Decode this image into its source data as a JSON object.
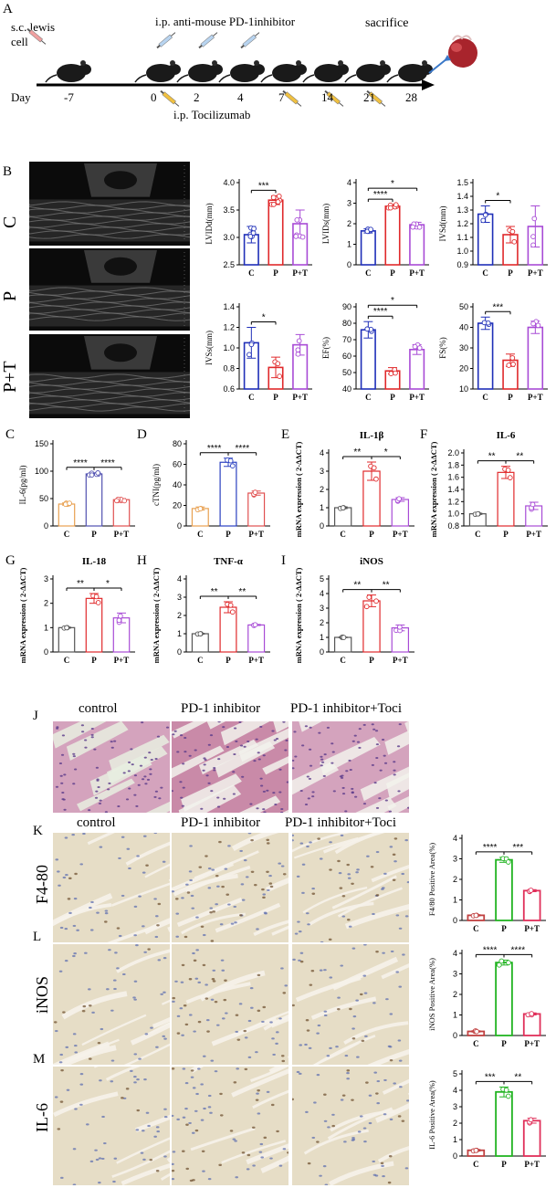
{
  "panel_letters": [
    "A",
    "B",
    "C",
    "D",
    "E",
    "F",
    "G",
    "H",
    "I",
    "J",
    "K",
    "L",
    "M"
  ],
  "timeline": {
    "top_left": "s.c. lewis",
    "top_left2": "cell",
    "top_mid": "i.p. anti-mouse PD-1inhibitor",
    "top_right": "sacrifice",
    "day_label": "Day",
    "days": [
      "-7",
      "0",
      "2",
      "4",
      "7",
      "14",
      "21",
      "28"
    ],
    "bottom": "i.p. Tocilizumab"
  },
  "echo_rows": [
    "C",
    "P",
    "P+T"
  ],
  "histology": {
    "j_cols": [
      "control",
      "PD-1 inhibitor",
      "PD-1 inhibitor+Toci"
    ],
    "k_cols": [
      "control",
      "PD-1 inhibitor",
      "PD-1 inhibitor+Toci"
    ],
    "rows": [
      "F4-80",
      "iNOS",
      "IL-6"
    ]
  },
  "colors": {
    "C": "#1f2fb8",
    "P": "#e0292b",
    "PT": "#a84bd6",
    "C_cd": "#e8a050",
    "K_C": "#c04040",
    "K_P": "#22b422",
    "K_PT": "#e0305a"
  },
  "chart_data": [
    {
      "id": "lvidd",
      "type": "bar",
      "categories": [
        "C",
        "P",
        "P+T"
      ],
      "values": [
        3.05,
        3.68,
        3.25
      ],
      "errors": [
        0.15,
        0.08,
        0.25
      ],
      "ylabel": "LVIDd(mm)",
      "ylim": [
        2.5,
        4.0
      ],
      "yticks": [
        "2.5",
        "3.0",
        "3.5",
        "4.0"
      ],
      "sig": [
        {
          "a": 0,
          "b": 1,
          "t": "***"
        }
      ]
    },
    {
      "id": "lvids",
      "type": "bar",
      "categories": [
        "C",
        "P",
        "P+T"
      ],
      "values": [
        1.65,
        2.85,
        1.95
      ],
      "errors": [
        0.1,
        0.08,
        0.12
      ],
      "ylabel": "LVIDs(mm)",
      "ylim": [
        0,
        4
      ],
      "yticks": [
        "0",
        "1",
        "2",
        "3",
        "4"
      ],
      "sig": [
        {
          "a": 0,
          "b": 1,
          "t": "****"
        },
        {
          "a": 0,
          "b": 2,
          "t": "*"
        }
      ]
    },
    {
      "id": "ivsd",
      "type": "bar",
      "categories": [
        "C",
        "P",
        "P+T"
      ],
      "values": [
        1.27,
        1.12,
        1.18
      ],
      "errors": [
        0.06,
        0.06,
        0.15
      ],
      "ylabel": "IVSd(mm)",
      "ylim": [
        0.9,
        1.5
      ],
      "yticks": [
        "0.9",
        "1.0",
        "1.1",
        "1.2",
        "1.3",
        "1.4",
        "1.5"
      ],
      "sig": [
        {
          "a": 0,
          "b": 1,
          "t": "*"
        }
      ]
    },
    {
      "id": "ivss",
      "type": "bar",
      "categories": [
        "C",
        "P",
        "P+T"
      ],
      "values": [
        1.05,
        0.81,
        1.03
      ],
      "errors": [
        0.15,
        0.1,
        0.1
      ],
      "ylabel": "IVSs(mm)",
      "ylim": [
        0.6,
        1.4
      ],
      "yticks": [
        "0.6",
        "0.8",
        "1.0",
        "1.2",
        "1.4"
      ],
      "sig": [
        {
          "a": 0,
          "b": 1,
          "t": "*"
        }
      ]
    },
    {
      "id": "ef",
      "type": "bar",
      "categories": [
        "C",
        "P",
        "P+T"
      ],
      "values": [
        76,
        51,
        64
      ],
      "errors": [
        5,
        2,
        3
      ],
      "ylabel": "EF(%)",
      "ylim": [
        40,
        90
      ],
      "yticks": [
        "40",
        "50",
        "60",
        "70",
        "80",
        "90"
      ],
      "sig": [
        {
          "a": 0,
          "b": 1,
          "t": "****"
        },
        {
          "a": 0,
          "b": 2,
          "t": "*"
        }
      ]
    },
    {
      "id": "fs",
      "type": "bar",
      "categories": [
        "C",
        "P",
        "P+T"
      ],
      "values": [
        42,
        24,
        40
      ],
      "errors": [
        3,
        3,
        3
      ],
      "ylabel": "FS(%)",
      "ylim": [
        10,
        50
      ],
      "yticks": [
        "10",
        "20",
        "30",
        "40",
        "50"
      ],
      "sig": [
        {
          "a": 0,
          "b": 1,
          "t": "***"
        }
      ]
    },
    {
      "id": "il6pg",
      "type": "bar",
      "categories": [
        "C",
        "P",
        "P+T"
      ],
      "values": [
        40,
        95,
        48
      ],
      "errors": [
        2,
        2,
        2
      ],
      "ylabel": "IL-6(pg/ml)",
      "ylim": [
        0,
        150
      ],
      "yticks": [
        "0",
        "50",
        "100",
        "150"
      ],
      "sig": [
        {
          "a": 0,
          "b": 1,
          "t": "****"
        },
        {
          "a": 1,
          "b": 2,
          "t": "****"
        }
      ]
    },
    {
      "id": "ctni",
      "type": "bar",
      "categories": [
        "C",
        "P",
        "P+T"
      ],
      "values": [
        17,
        62,
        32
      ],
      "errors": [
        1.5,
        4,
        2
      ],
      "ylabel": "cTNI(pg/ml)",
      "ylim": [
        0,
        80
      ],
      "yticks": [
        "0",
        "20",
        "40",
        "60",
        "80"
      ],
      "sig": [
        {
          "a": 0,
          "b": 1,
          "t": "****"
        },
        {
          "a": 1,
          "b": 2,
          "t": "****"
        }
      ]
    },
    {
      "id": "il1b",
      "type": "bar",
      "title": "IL-1β",
      "categories": [
        "C",
        "P",
        "P+T"
      ],
      "values": [
        1,
        3.0,
        1.45
      ],
      "errors": [
        0.05,
        0.5,
        0.1
      ],
      "ylabel": "mRNA expression ( 2-ΔΔCT)",
      "ylim": [
        0,
        4
      ],
      "yticks": [
        "0",
        "1",
        "2",
        "3",
        "4"
      ],
      "sig": [
        {
          "a": 0,
          "b": 1,
          "t": "**"
        },
        {
          "a": 1,
          "b": 2,
          "t": "*"
        }
      ]
    },
    {
      "id": "il6m",
      "type": "bar",
      "title": "IL-6",
      "categories": [
        "C",
        "P",
        "P+T"
      ],
      "values": [
        1.0,
        1.68,
        1.13
      ],
      "errors": [
        0.01,
        0.1,
        0.06
      ],
      "ylabel": "mRNA expression ( 2-ΔΔCT)",
      "ylim": [
        0.8,
        2.0
      ],
      "yticks": [
        "0.8",
        "1.0",
        "1.2",
        "1.4",
        "1.6",
        "1.8",
        "2.0"
      ],
      "sig": [
        {
          "a": 0,
          "b": 1,
          "t": "**"
        },
        {
          "a": 1,
          "b": 2,
          "t": "**"
        }
      ]
    },
    {
      "id": "il18",
      "type": "bar",
      "title": "IL-18",
      "categories": [
        "C",
        "P",
        "P+T"
      ],
      "values": [
        1,
        2.2,
        1.4
      ],
      "errors": [
        0.02,
        0.2,
        0.2
      ],
      "ylabel": "mRNA expression ( 2-ΔΔCT)",
      "ylim": [
        0,
        3
      ],
      "yticks": [
        "0",
        "1",
        "2",
        "3"
      ],
      "sig": [
        {
          "a": 0,
          "b": 1,
          "t": "**"
        },
        {
          "a": 1,
          "b": 2,
          "t": "*"
        }
      ]
    },
    {
      "id": "tnfa",
      "type": "bar",
      "title": "TNF-α",
      "categories": [
        "C",
        "P",
        "P+T"
      ],
      "values": [
        1,
        2.45,
        1.48
      ],
      "errors": [
        0.02,
        0.3,
        0.03
      ],
      "ylabel": "mRNA expression ( 2-ΔΔCT)",
      "ylim": [
        0,
        4
      ],
      "yticks": [
        "0",
        "1",
        "2",
        "3",
        "4"
      ],
      "sig": [
        {
          "a": 0,
          "b": 1,
          "t": "**"
        },
        {
          "a": 1,
          "b": 2,
          "t": "**"
        }
      ]
    },
    {
      "id": "inosm",
      "type": "bar",
      "title": "iNOS",
      "categories": [
        "C",
        "P",
        "P+T"
      ],
      "values": [
        1,
        3.5,
        1.65
      ],
      "errors": [
        0.02,
        0.4,
        0.2
      ],
      "ylabel": "mRNA expression ( 2-ΔΔCT)",
      "ylim": [
        0,
        5
      ],
      "yticks": [
        "0",
        "1",
        "2",
        "3",
        "4",
        "5"
      ],
      "sig": [
        {
          "a": 0,
          "b": 1,
          "t": "**"
        },
        {
          "a": 1,
          "b": 2,
          "t": "**"
        }
      ]
    },
    {
      "id": "f480",
      "type": "bar",
      "categories": [
        "C",
        "P",
        "P+T"
      ],
      "values": [
        0.25,
        2.95,
        1.45
      ],
      "errors": [
        0.03,
        0.12,
        0.05
      ],
      "ylabel": "F4/80 Positive Area(%)",
      "ylim": [
        0,
        4
      ],
      "yticks": [
        "0",
        "1",
        "2",
        "3",
        "4"
      ],
      "sig": [
        {
          "a": 0,
          "b": 1,
          "t": "****"
        },
        {
          "a": 1,
          "b": 2,
          "t": "***"
        }
      ]
    },
    {
      "id": "inosk",
      "type": "bar",
      "categories": [
        "C",
        "P",
        "P+T"
      ],
      "values": [
        0.2,
        3.55,
        1.05
      ],
      "errors": [
        0.03,
        0.12,
        0.05
      ],
      "ylabel": "iNOS Positive Area(%)",
      "ylim": [
        0,
        4
      ],
      "yticks": [
        "0",
        "1",
        "2",
        "3",
        "4"
      ],
      "sig": [
        {
          "a": 0,
          "b": 1,
          "t": "****"
        },
        {
          "a": 1,
          "b": 2,
          "t": "****"
        }
      ]
    },
    {
      "id": "il6k",
      "type": "bar",
      "categories": [
        "C",
        "P",
        "P+T"
      ],
      "values": [
        0.35,
        3.9,
        2.15
      ],
      "errors": [
        0.05,
        0.3,
        0.15
      ],
      "ylabel": "IL-6 Positive Area(%)",
      "ylim": [
        0,
        5
      ],
      "yticks": [
        "0",
        "1",
        "2",
        "3",
        "4",
        "5"
      ],
      "sig": [
        {
          "a": 0,
          "b": 1,
          "t": "***"
        },
        {
          "a": 1,
          "b": 2,
          "t": "**"
        }
      ]
    }
  ]
}
